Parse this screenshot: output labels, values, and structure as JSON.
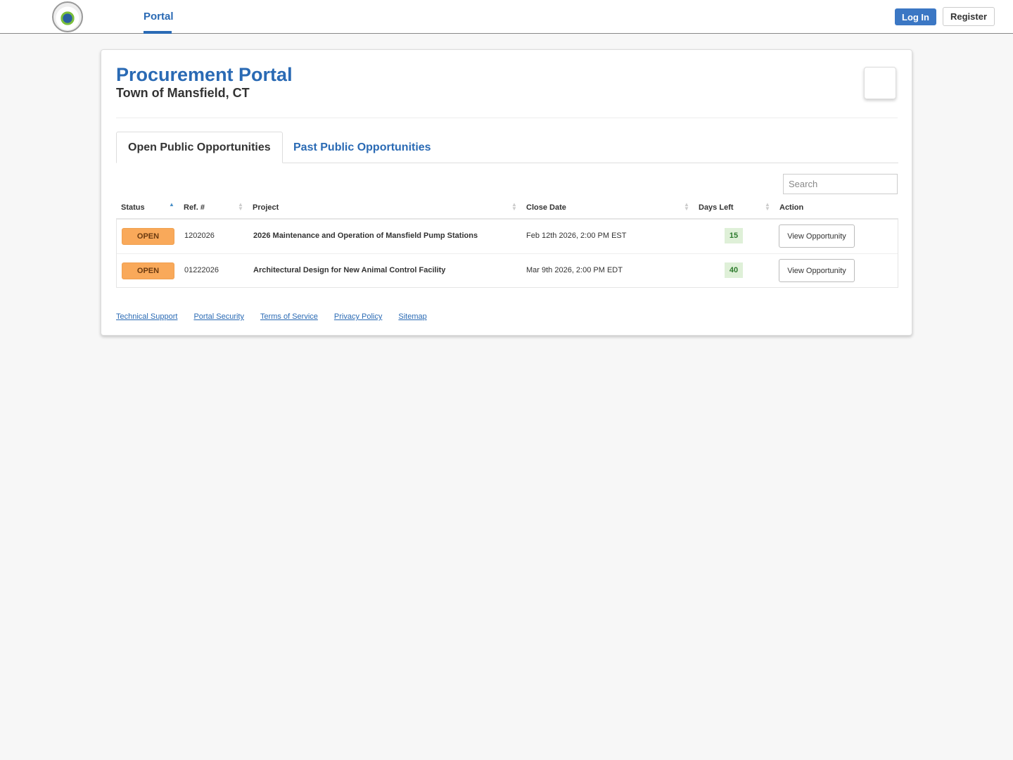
{
  "header": {
    "nav_tab": "Portal",
    "login": "Log In",
    "register": "Register",
    "logo": "Town of Mansfield seal"
  },
  "page": {
    "title": "Procurement Portal",
    "subtitle": "Town of Mansfield, CT"
  },
  "tabs": [
    {
      "label": "Open Public Opportunities",
      "active": true
    },
    {
      "label": "Past Public Opportunities",
      "active": false
    }
  ],
  "search": {
    "placeholder": "Search",
    "value": ""
  },
  "table": {
    "columns": [
      "Status",
      "Ref. #",
      "Project",
      "Close Date",
      "Days Left",
      "Action"
    ],
    "sorted_column": "Status",
    "sort_direction": "ascending",
    "rows": [
      {
        "status": "OPEN",
        "ref": "1202026",
        "project": "2026 Maintenance and Operation of Mansfield Pump Stations",
        "close_date": "Feb 12th 2026, 2:00 PM EST",
        "days_left": "15",
        "action": "View Opportunity"
      },
      {
        "status": "OPEN",
        "ref": "01222026",
        "project": "Architectural Design for New Animal Control Facility",
        "close_date": "Mar 9th 2026, 2:00 PM EDT",
        "days_left": "40",
        "action": "View Opportunity"
      }
    ]
  },
  "footer": {
    "links": [
      "Technical Support",
      "Portal Security",
      "Terms of Service",
      "Privacy Policy",
      "Sitemap"
    ]
  },
  "colors": {
    "brand": "#2a6ab4",
    "open_badge": "#f9a95a",
    "days_badge": "#dff0d8"
  }
}
